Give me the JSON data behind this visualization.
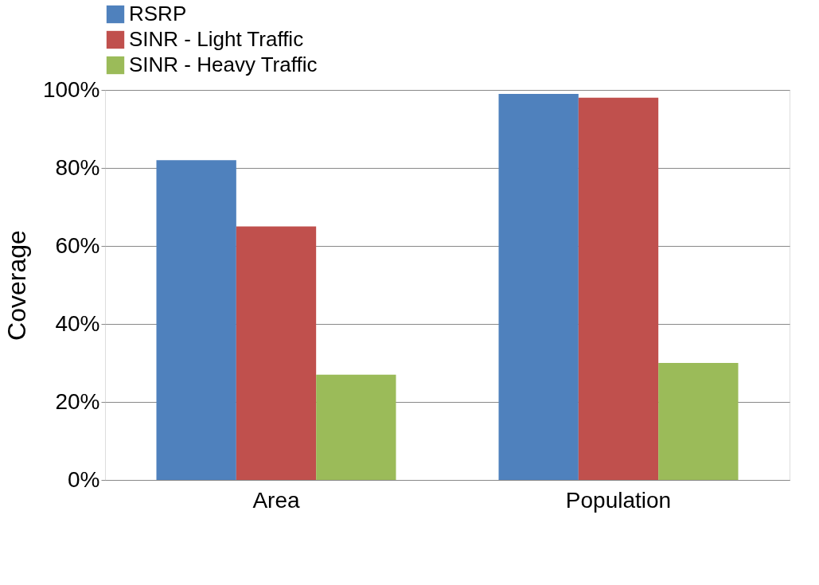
{
  "chart_data": {
    "type": "bar",
    "ylabel": "Coverage",
    "categories": [
      "Area",
      "Population"
    ],
    "series": [
      {
        "name": "RSRP",
        "color": "#4f81bd",
        "values": [
          82,
          99
        ]
      },
      {
        "name": "SINR - Light Traffic",
        "color": "#c0504d",
        "values": [
          65,
          98
        ]
      },
      {
        "name": "SINR - Heavy Traffic",
        "color": "#9bbb59",
        "values": [
          27,
          30
        ]
      }
    ],
    "ylim": [
      0,
      100
    ],
    "yticks": [
      {
        "value": 0,
        "label": "0%"
      },
      {
        "value": 20,
        "label": "20%"
      },
      {
        "value": 40,
        "label": "40%"
      },
      {
        "value": 60,
        "label": "60%"
      },
      {
        "value": 80,
        "label": "80%"
      },
      {
        "value": 100,
        "label": "100%"
      }
    ],
    "grid": "y",
    "legend": "top"
  }
}
